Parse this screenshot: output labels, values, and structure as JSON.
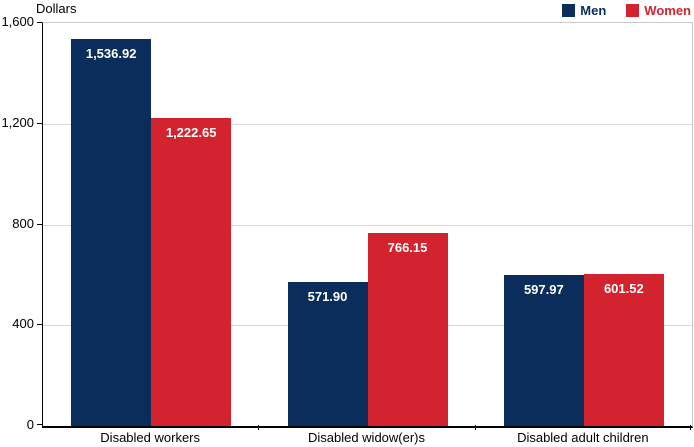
{
  "header": {
    "y_axis_title": "Dollars"
  },
  "legend": {
    "items": [
      {
        "label": "Men",
        "color": "#0b2d5c"
      },
      {
        "label": "Women",
        "color": "#d2232e"
      }
    ]
  },
  "colors": {
    "men": "#0b2d5c",
    "women": "#d2232e",
    "gridline": "#d9d9d9",
    "axis": "#000000",
    "plot_border": "#c9c9c9",
    "bar_label_text": "#ffffff"
  },
  "chart_data": {
    "type": "bar",
    "title": "",
    "ylabel": "Dollars",
    "xlabel": "",
    "categories": [
      "Disabled workers",
      "Disabled widow(er)s",
      "Disabled adult children"
    ],
    "series": [
      {
        "name": "Men",
        "color": "#0b2d5c",
        "values": [
          1536.92,
          571.9,
          597.97
        ],
        "labels": [
          "1,536.92",
          "571.90",
          "597.97"
        ]
      },
      {
        "name": "Women",
        "color": "#d2232e",
        "values": [
          1222.65,
          766.15,
          601.52
        ],
        "labels": [
          "1,222.65",
          "766.15",
          "601.52"
        ]
      }
    ],
    "ylim": [
      0,
      1600
    ],
    "yticks": [
      0,
      400,
      800,
      1200,
      1600
    ],
    "ytick_labels": [
      "0",
      "400",
      "800",
      "1,200",
      "1,600"
    ],
    "grid": true,
    "legend_position": "top-right"
  }
}
